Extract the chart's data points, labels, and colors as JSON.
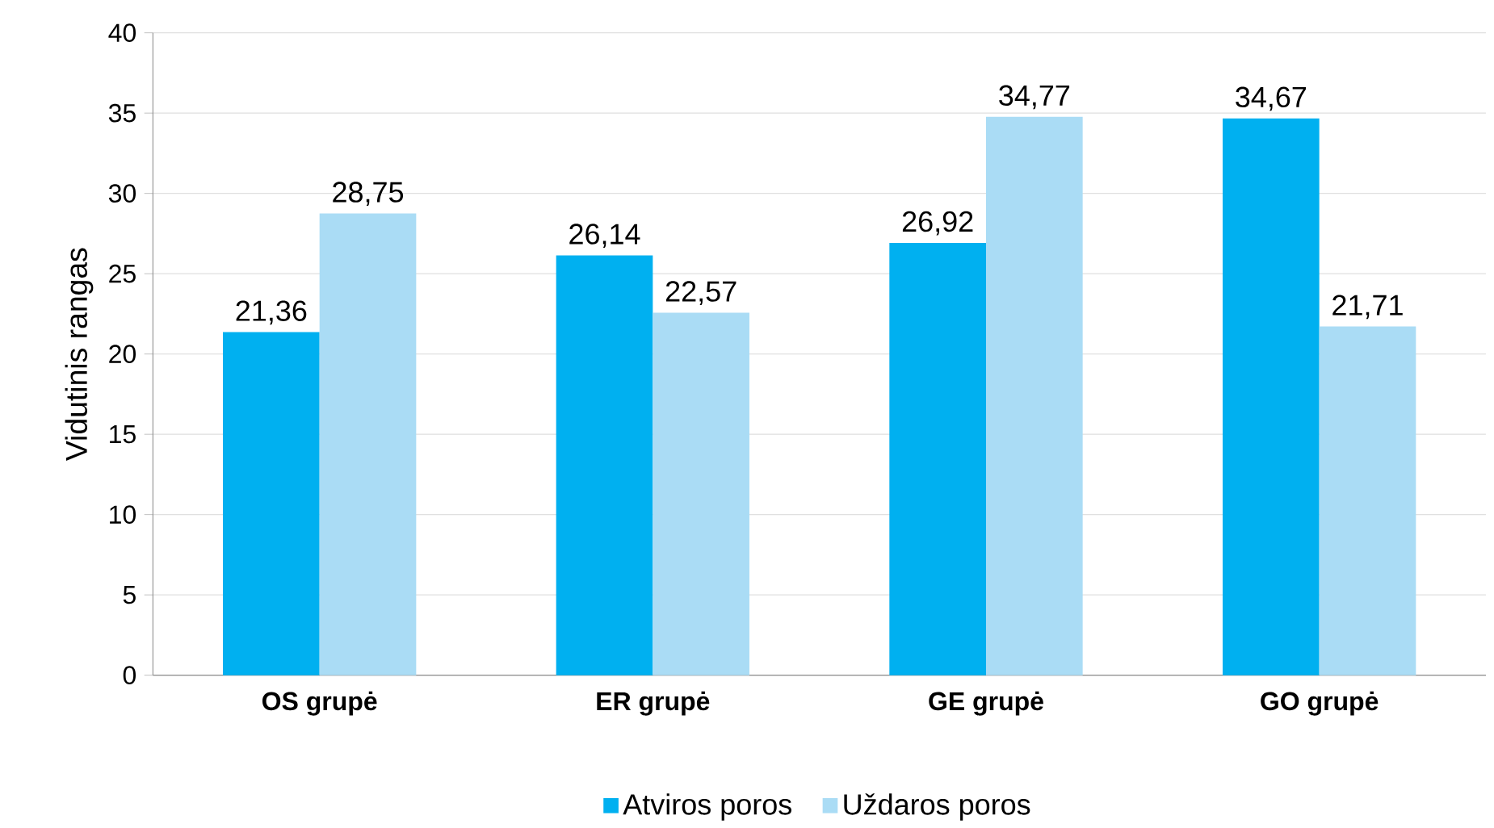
{
  "chart_data": {
    "type": "bar",
    "ylabel": "Vidutinis rangas",
    "categories": [
      "OS grupė",
      "ER grupė",
      "GE grupė",
      "GO grupė"
    ],
    "series": [
      {
        "name": "Atviros poros",
        "color": "#00b0f0",
        "values": [
          21.36,
          26.14,
          26.92,
          34.67
        ],
        "value_labels": [
          "21,36",
          "26,14",
          "26,92",
          "34,67"
        ]
      },
      {
        "name": "Uždaros poros",
        "color": "#aadcf5",
        "values": [
          28.75,
          22.57,
          34.77,
          21.71
        ],
        "value_labels": [
          "28,75",
          "22,57",
          "34,77",
          "21,71"
        ]
      }
    ],
    "ylim": [
      0,
      40
    ],
    "yticks": [
      0,
      5,
      10,
      15,
      20,
      25,
      30,
      35,
      40
    ],
    "grid": "y",
    "legend": "bottom"
  }
}
